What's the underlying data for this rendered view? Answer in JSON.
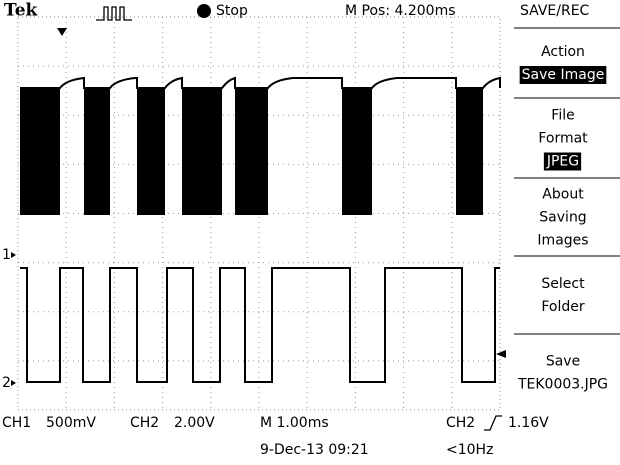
{
  "header": {
    "brand": "Tek",
    "state": "Stop",
    "position": "M Pos: 4.200ms"
  },
  "menu": {
    "title": "SAVE/REC",
    "items": [
      {
        "label": [
          "Action"
        ],
        "value": "Save Image"
      },
      {
        "label": [
          "File",
          "Format"
        ],
        "value": "JPEG"
      },
      {
        "label": [
          "About",
          "Saving",
          "Images"
        ]
      },
      {
        "label": [
          "Select",
          "Folder"
        ]
      },
      {
        "label": [
          "Save"
        ],
        "value": "TEK0003.JPG"
      }
    ]
  },
  "channels": {
    "markers": [
      "1",
      "2"
    ]
  },
  "status": {
    "ch1": "CH1",
    "ch1_scale": "500mV",
    "ch2": "CH2",
    "ch2_scale": "2.00V",
    "timebase": "M 1.00ms",
    "trigger_source": "CH2",
    "trigger_level": "1.16V",
    "date": "9-Dec-13 09:21",
    "frequency": "<10Hz"
  }
}
